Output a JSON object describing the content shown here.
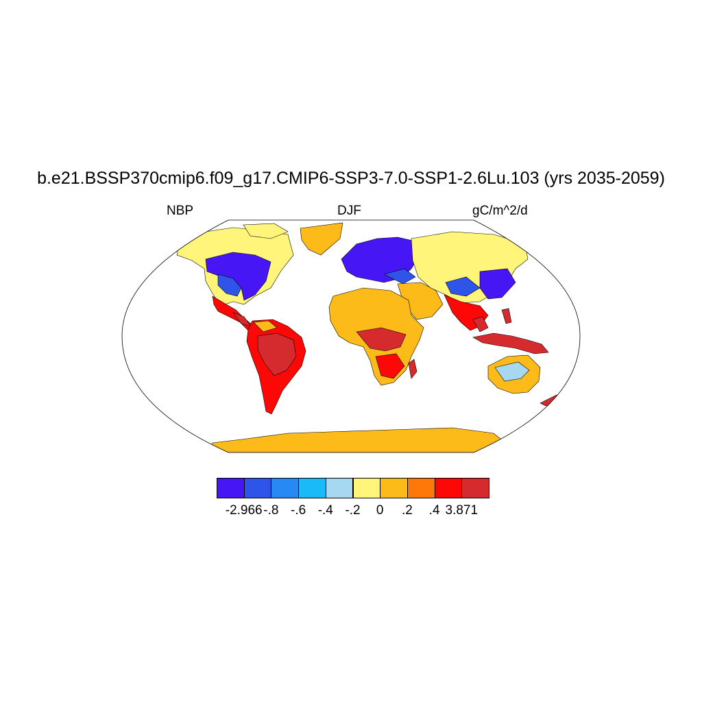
{
  "title": "b.e21.BSSP370cmip6.f09_g17.CMIP6-SSP3-7.0-SSP1-2.6Lu.103 (yrs 2035-2059)",
  "variable": "NBP",
  "season": "DJF",
  "units": "gC/m^2/d",
  "colorbar": {
    "labels": [
      "-2.966",
      "-.8",
      "-.6",
      "-.4",
      "-.2",
      "0",
      ".2",
      ".4",
      "3.871"
    ],
    "colors": [
      "#4616f5",
      "#2f54e8",
      "#2889f5",
      "#1ab9f7",
      "#a6d8f2",
      "#fff57a",
      "#fdbb19",
      "#fd7809",
      "#fe0707",
      "#d52b2f"
    ]
  },
  "map_colors": {
    "ocean": "#ffffff",
    "antarctica": "#fdbb19",
    "greenland": "#fdbb19",
    "coast": "#000000",
    "frame": "#000000"
  }
}
